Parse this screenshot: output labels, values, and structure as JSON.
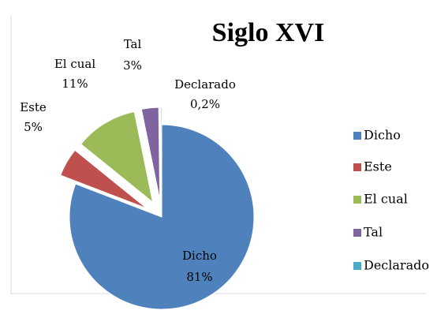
{
  "chart_data": {
    "type": "pie",
    "title": "Siglo XVI",
    "categories": [
      "Dicho",
      "Este",
      "El cual",
      "Tal",
      "Declarado"
    ],
    "values": [
      81,
      5,
      11,
      3,
      0.2
    ],
    "value_labels": [
      "81%",
      "5%",
      "11%",
      "3%",
      "0,2%"
    ],
    "colors": [
      "#4f81bd",
      "#c0504d",
      "#9bbb59",
      "#8064a2",
      "#4bacc6"
    ],
    "legend": "right"
  }
}
